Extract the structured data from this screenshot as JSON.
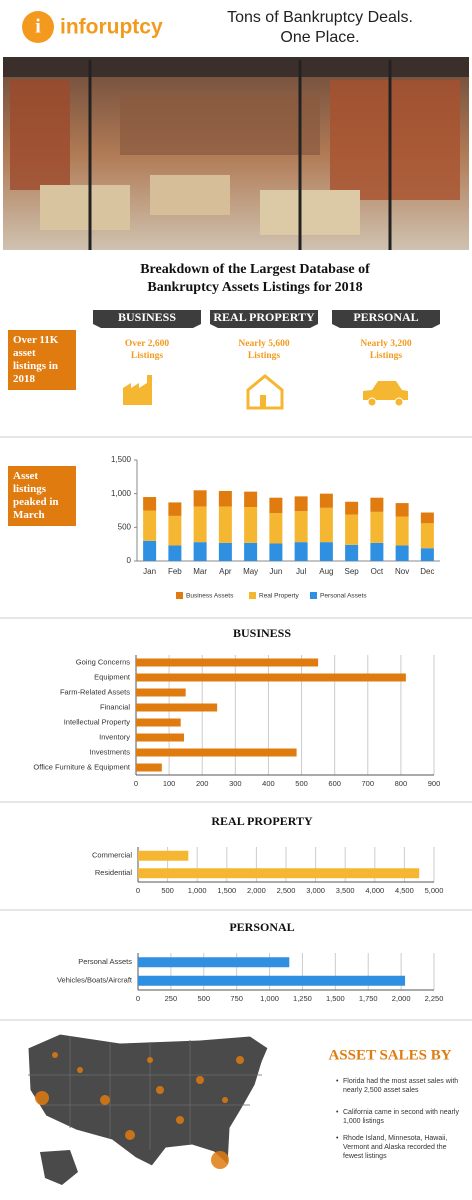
{
  "header": {
    "logo": "inforuptcy",
    "tagline": [
      "Tons of Bankruptcy Deals.",
      "One Place."
    ]
  },
  "breakdown": {
    "title": [
      "Breakdown of the Largest Database of",
      "Bankruptcy Assets Listings for 2018"
    ],
    "callout": "Over 11K asset listings in 2018",
    "categories": [
      {
        "name": "BUSINESS",
        "listings": [
          "Over 2,600",
          "Listings"
        ]
      },
      {
        "name": "REAL PROPERTY",
        "listings": [
          "Nearly 5,600",
          "Listings"
        ]
      },
      {
        "name": "PERSONAL",
        "listings": [
          "Nearly 3,200",
          "Listings"
        ]
      }
    ]
  },
  "chart_callout": "Asset listings peaked in March",
  "chart_data": [
    {
      "type": "stacked-bar",
      "categories": [
        "Jan",
        "Feb",
        "Mar",
        "Apr",
        "May",
        "Jun",
        "Jul",
        "Aug",
        "Sep",
        "Oct",
        "Nov",
        "Dec"
      ],
      "series": [
        {
          "name": "Business Assets",
          "color": "#e07b10",
          "values": [
            200,
            200,
            240,
            230,
            230,
            230,
            220,
            210,
            190,
            210,
            200,
            160
          ]
        },
        {
          "name": "Real Property",
          "color": "#f5b731",
          "values": [
            450,
            440,
            530,
            540,
            530,
            450,
            460,
            510,
            450,
            460,
            430,
            370
          ]
        },
        {
          "name": "Personal Assets",
          "color": "#2f8fe0",
          "values": [
            300,
            230,
            280,
            270,
            270,
            260,
            280,
            280,
            240,
            270,
            230,
            190
          ]
        }
      ],
      "ylim": [
        0,
        1500
      ],
      "yticks": [
        0,
        500,
        {
          "value": 1000,
          "label": "1,000"
        },
        {
          "value": 1500,
          "label": "1,500"
        }
      ],
      "grid": false
    },
    {
      "type": "hbar",
      "title": "BUSINESS",
      "categories": [
        "Going Concerns",
        "Equipment",
        "Farm-Related Assets",
        "Financial",
        "Intellectual Property",
        "Inventory",
        "Investments",
        "Office Furniture & Equipment"
      ],
      "values": [
        550,
        815,
        150,
        245,
        135,
        145,
        485,
        78
      ],
      "color": "#e07b10",
      "xlim": [
        0,
        900
      ],
      "xticks": [
        0,
        100,
        200,
        300,
        400,
        500,
        600,
        700,
        800,
        900
      ],
      "grid": true
    },
    {
      "type": "hbar",
      "title": "REAL PROPERTY",
      "categories": [
        "Commercial",
        "Residential"
      ],
      "values": [
        850,
        4750
      ],
      "color": "#f5b731",
      "xlim": [
        0,
        5000
      ],
      "xticks": [
        0,
        500,
        {
          "value": 1000,
          "label": "1,000"
        },
        {
          "value": 1500,
          "label": "1,500"
        },
        {
          "value": 2000,
          "label": "2,000"
        },
        {
          "value": 2500,
          "label": "2,500"
        },
        {
          "value": 3000,
          "label": "3,000"
        },
        {
          "value": 3500,
          "label": "3,500"
        },
        {
          "value": 4000,
          "label": "4,000"
        },
        {
          "value": 4500,
          "label": "4,500"
        },
        {
          "value": 5000,
          "label": "5,000"
        }
      ],
      "grid": true
    },
    {
      "type": "hbar",
      "title": "PERSONAL",
      "categories": [
        "Personal Assets",
        "Vehicles/Boats/Aircraft"
      ],
      "values": [
        1150,
        2030
      ],
      "color": "#2f8fe0",
      "xlim": [
        0,
        2250
      ],
      "xticks": [
        0,
        250,
        500,
        750,
        {
          "value": 1000,
          "label": "1,000"
        },
        {
          "value": 1250,
          "label": "1,250"
        },
        {
          "value": 1500,
          "label": "1,500"
        },
        {
          "value": 1750,
          "label": "1,750"
        },
        {
          "value": 2000,
          "label": "2,000"
        },
        {
          "value": 2250,
          "label": "2,250"
        }
      ],
      "grid": true
    }
  ],
  "map": {
    "title": "ASSET SALES BY",
    "bullets": [
      "Florida had the most asset sales with nearly 2,500 asset sales",
      "California came in second with nearly 1,000 listings",
      "Rhode Island, Minnesota, Hawaii, Vermont and Alaska recorded the fewest listings"
    ]
  }
}
